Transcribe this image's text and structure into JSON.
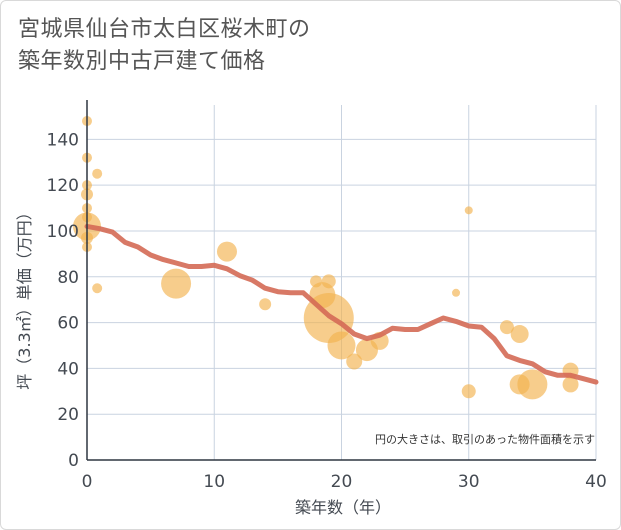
{
  "title_line1": "宮城県仙台市太白区桜木町の",
  "title_line2": "築年数別中古戸建て価格",
  "chart_data": {
    "type": "scatter",
    "title": "宮城県仙台市太白区桜木町の築年数別中古戸建て価格",
    "xlabel": "築年数（年）",
    "ylabel": "坪（3.3㎡）単価（万円）",
    "xlim": [
      0,
      40
    ],
    "ylim": [
      0,
      155
    ],
    "xticks": [
      0,
      10,
      20,
      30,
      40
    ],
    "yticks": [
      0,
      20,
      40,
      60,
      80,
      100,
      120,
      140
    ],
    "grid": true,
    "note": "円の大きさは、取引のあった物件面積を示す",
    "colors": {
      "bubble": "#f3b24f",
      "line": "#d46a55",
      "grid": "#c9d3e0"
    },
    "bubbles": [
      {
        "x": 0,
        "y": 148,
        "r": 5
      },
      {
        "x": 0,
        "y": 132,
        "r": 5
      },
      {
        "x": 0,
        "y": 120,
        "r": 5
      },
      {
        "x": 0,
        "y": 116,
        "r": 6
      },
      {
        "x": 0,
        "y": 110,
        "r": 5
      },
      {
        "x": 0,
        "y": 106,
        "r": 5
      },
      {
        "x": 0,
        "y": 102,
        "r": 14
      },
      {
        "x": 0,
        "y": 97,
        "r": 6
      },
      {
        "x": 0,
        "y": 93,
        "r": 5
      },
      {
        "x": 0.8,
        "y": 125,
        "r": 5
      },
      {
        "x": 0.8,
        "y": 75,
        "r": 5
      },
      {
        "x": 7,
        "y": 77,
        "r": 15
      },
      {
        "x": 11,
        "y": 91,
        "r": 10
      },
      {
        "x": 14,
        "y": 68,
        "r": 6
      },
      {
        "x": 18,
        "y": 78,
        "r": 6
      },
      {
        "x": 18.5,
        "y": 72,
        "r": 13
      },
      {
        "x": 19,
        "y": 78,
        "r": 7
      },
      {
        "x": 19,
        "y": 62,
        "r": 25
      },
      {
        "x": 20,
        "y": 50,
        "r": 14
      },
      {
        "x": 21,
        "y": 43,
        "r": 8
      },
      {
        "x": 22,
        "y": 48,
        "r": 11
      },
      {
        "x": 23,
        "y": 52,
        "r": 9
      },
      {
        "x": 29,
        "y": 73,
        "r": 4
      },
      {
        "x": 30,
        "y": 109,
        "r": 4
      },
      {
        "x": 30,
        "y": 30,
        "r": 7
      },
      {
        "x": 33,
        "y": 58,
        "r": 7
      },
      {
        "x": 34,
        "y": 55,
        "r": 9
      },
      {
        "x": 34,
        "y": 33,
        "r": 10
      },
      {
        "x": 35,
        "y": 33,
        "r": 15
      },
      {
        "x": 38,
        "y": 39,
        "r": 8
      },
      {
        "x": 38,
        "y": 33,
        "r": 8
      }
    ],
    "trend": {
      "x": [
        0,
        1,
        2,
        3,
        4,
        5,
        6,
        7,
        8,
        9,
        10,
        11,
        12,
        13,
        14,
        15,
        16,
        17,
        18,
        19,
        20,
        21,
        22,
        23,
        24,
        25,
        26,
        27,
        28,
        29,
        30,
        31,
        32,
        33,
        34,
        35,
        36,
        37,
        38,
        39,
        40
      ],
      "y": [
        102,
        101,
        99.5,
        95,
        93,
        89.5,
        87.5,
        86,
        84.5,
        84.5,
        85,
        83.5,
        80.5,
        78.5,
        75,
        73.5,
        73,
        73,
        68,
        63,
        59.5,
        55,
        53,
        54.5,
        57.5,
        57,
        57,
        59.5,
        62,
        60.5,
        58.5,
        58,
        53,
        45.5,
        43.5,
        42,
        38.5,
        37,
        37,
        35.5,
        34
      ]
    }
  }
}
